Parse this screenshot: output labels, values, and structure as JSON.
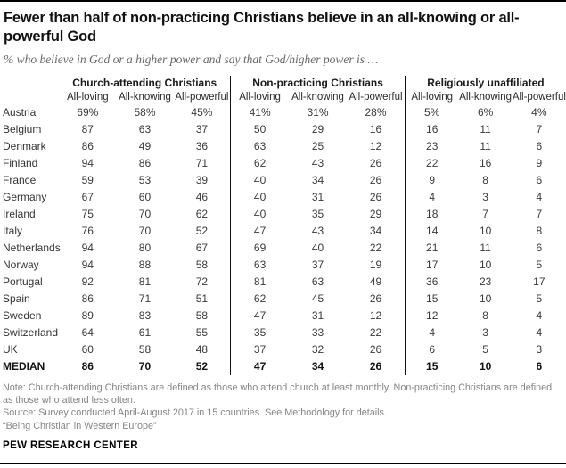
{
  "header": {
    "title": "Fewer than half of non-practicing Christians believe in an all-knowing or all-powerful God",
    "subtitle": "% who believe in God or a higher power and say that God/higher power is …"
  },
  "table": {
    "groups": [
      {
        "label": "Church-attending Christians"
      },
      {
        "label": "Non-practicing Christians"
      },
      {
        "label": "Religiously unaffiliated"
      }
    ],
    "columns": [
      "All-loving",
      "All-knowing",
      "All-powerful"
    ],
    "rows": [
      {
        "label": "Austria",
        "bold": false,
        "values": [
          "69%",
          "58%",
          "45%",
          "41%",
          "31%",
          "28%",
          "5%",
          "6%",
          "4%"
        ]
      },
      {
        "label": "Belgium",
        "bold": false,
        "values": [
          "87",
          "63",
          "37",
          "50",
          "29",
          "16",
          "16",
          "11",
          "7"
        ]
      },
      {
        "label": "Denmark",
        "bold": false,
        "values": [
          "86",
          "49",
          "36",
          "63",
          "25",
          "12",
          "23",
          "11",
          "6"
        ]
      },
      {
        "label": "Finland",
        "bold": false,
        "values": [
          "94",
          "86",
          "71",
          "62",
          "43",
          "26",
          "22",
          "16",
          "9"
        ]
      },
      {
        "label": "France",
        "bold": false,
        "values": [
          "59",
          "53",
          "39",
          "40",
          "34",
          "26",
          "9",
          "8",
          "6"
        ]
      },
      {
        "label": "Germany",
        "bold": false,
        "values": [
          "67",
          "60",
          "46",
          "40",
          "31",
          "26",
          "4",
          "3",
          "4"
        ]
      },
      {
        "label": "Ireland",
        "bold": false,
        "values": [
          "75",
          "70",
          "62",
          "40",
          "35",
          "29",
          "18",
          "7",
          "7"
        ]
      },
      {
        "label": "Italy",
        "bold": false,
        "values": [
          "76",
          "70",
          "52",
          "47",
          "43",
          "34",
          "14",
          "10",
          "8"
        ]
      },
      {
        "label": "Netherlands",
        "bold": false,
        "values": [
          "94",
          "80",
          "67",
          "69",
          "40",
          "22",
          "21",
          "11",
          "6"
        ]
      },
      {
        "label": "Norway",
        "bold": false,
        "values": [
          "94",
          "88",
          "58",
          "63",
          "37",
          "19",
          "17",
          "10",
          "5"
        ]
      },
      {
        "label": "Portugal",
        "bold": false,
        "values": [
          "92",
          "81",
          "72",
          "81",
          "63",
          "49",
          "36",
          "23",
          "17"
        ]
      },
      {
        "label": "Spain",
        "bold": false,
        "values": [
          "86",
          "71",
          "51",
          "62",
          "45",
          "26",
          "15",
          "10",
          "5"
        ]
      },
      {
        "label": "Sweden",
        "bold": false,
        "values": [
          "89",
          "83",
          "58",
          "47",
          "31",
          "12",
          "12",
          "8",
          "4"
        ]
      },
      {
        "label": "Switzerland",
        "bold": false,
        "values": [
          "64",
          "61",
          "55",
          "35",
          "33",
          "22",
          "4",
          "3",
          "4"
        ]
      },
      {
        "label": "UK",
        "bold": false,
        "values": [
          "60",
          "58",
          "48",
          "37",
          "32",
          "26",
          "6",
          "5",
          "3"
        ]
      },
      {
        "label": "MEDIAN",
        "bold": true,
        "values": [
          "86",
          "70",
          "52",
          "47",
          "34",
          "26",
          "15",
          "10",
          "6"
        ]
      }
    ]
  },
  "footer": {
    "note": "Note: Church-attending Christians are defined as those who attend church at least monthly. Non-practicing Christians are defined as those who attend less often.",
    "source": "Source: Survey conducted April-August 2017 in 15 countries. See Methodology for details.",
    "report": "“Being Christian in Western Europe”",
    "brand": "PEW RESEARCH CENTER"
  },
  "chart_data": {
    "type": "table",
    "title": "Fewer than half of non-practicing Christians believe in an all-knowing or all-powerful God",
    "subtitle": "% who believe in God or a higher power and say that God/higher power is …",
    "unit": "percent",
    "categories": [
      "Austria",
      "Belgium",
      "Denmark",
      "Finland",
      "France",
      "Germany",
      "Ireland",
      "Italy",
      "Netherlands",
      "Norway",
      "Portugal",
      "Spain",
      "Sweden",
      "Switzerland",
      "UK",
      "MEDIAN"
    ],
    "series": [
      {
        "group": "Church-attending Christians",
        "name": "All-loving",
        "values": [
          69,
          87,
          86,
          94,
          59,
          67,
          75,
          76,
          94,
          94,
          92,
          86,
          89,
          64,
          60,
          86
        ]
      },
      {
        "group": "Church-attending Christians",
        "name": "All-knowing",
        "values": [
          58,
          63,
          49,
          86,
          53,
          60,
          70,
          70,
          80,
          88,
          81,
          71,
          83,
          61,
          58,
          70
        ]
      },
      {
        "group": "Church-attending Christians",
        "name": "All-powerful",
        "values": [
          45,
          37,
          36,
          71,
          39,
          46,
          62,
          52,
          67,
          58,
          72,
          51,
          58,
          55,
          48,
          52
        ]
      },
      {
        "group": "Non-practicing Christians",
        "name": "All-loving",
        "values": [
          41,
          50,
          63,
          62,
          40,
          40,
          40,
          47,
          69,
          63,
          81,
          62,
          47,
          35,
          37,
          47
        ]
      },
      {
        "group": "Non-practicing Christians",
        "name": "All-knowing",
        "values": [
          31,
          29,
          25,
          43,
          34,
          31,
          35,
          43,
          40,
          37,
          63,
          45,
          31,
          33,
          32,
          34
        ]
      },
      {
        "group": "Non-practicing Christians",
        "name": "All-powerful",
        "values": [
          28,
          16,
          12,
          26,
          26,
          26,
          29,
          34,
          22,
          19,
          49,
          26,
          12,
          22,
          26,
          26
        ]
      },
      {
        "group": "Religiously unaffiliated",
        "name": "All-loving",
        "values": [
          5,
          16,
          23,
          22,
          9,
          4,
          18,
          14,
          21,
          17,
          36,
          15,
          12,
          4,
          6,
          15
        ]
      },
      {
        "group": "Religiously unaffiliated",
        "name": "All-knowing",
        "values": [
          6,
          11,
          11,
          16,
          8,
          3,
          7,
          10,
          11,
          10,
          23,
          10,
          8,
          3,
          5,
          10
        ]
      },
      {
        "group": "Religiously unaffiliated",
        "name": "All-powerful",
        "values": [
          4,
          7,
          6,
          9,
          6,
          4,
          7,
          8,
          6,
          5,
          17,
          5,
          4,
          4,
          3,
          6
        ]
      }
    ]
  }
}
